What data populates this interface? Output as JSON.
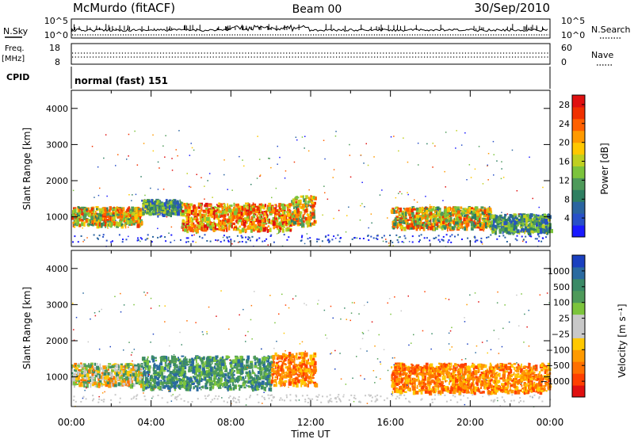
{
  "header": {
    "station": "McMurdo (fitACF)",
    "beam": "Beam 00",
    "date": "30/Sep/2010"
  },
  "noise_panel": {
    "left_label": "N.Sky",
    "left_ticks": [
      "10^5",
      "10^0"
    ],
    "right_ticks": [
      "10^5",
      "10^0"
    ],
    "right_label": "N.Search"
  },
  "freq_panel": {
    "left_label_1": "Freq.",
    "left_label_2": "[MHz]",
    "left_ticks": [
      "18",
      "8"
    ],
    "right_ticks": [
      "60",
      "0"
    ],
    "right_label": "Nave"
  },
  "cpid_panel": {
    "label": "CPID",
    "value": "normal (fast) 151"
  },
  "chart_data": [
    {
      "type": "heatmap",
      "panel": "power",
      "ylabel": "Slant Range [km]",
      "ylim": [
        180,
        4500
      ],
      "yticks": [
        "1000",
        "2000",
        "3000",
        "4000"
      ],
      "xlim_hours": [
        0,
        24
      ],
      "colorbar": {
        "label": "Power [dB]",
        "ticks": [
          "4",
          "8",
          "12",
          "16",
          "20",
          "24",
          "28"
        ],
        "colors": [
          "#1a1aff",
          "#2850c8",
          "#2a64a0",
          "#2e7f62",
          "#4e9a5a",
          "#7cc43c",
          "#bfd020",
          "#ffc800",
          "#ff9a00",
          "#ff6000",
          "#f03000",
          "#e01010"
        ]
      },
      "echo_regions": [
        {
          "t0": 0.0,
          "t1": 3.5,
          "r0": 800,
          "r1": 1300,
          "level": "high"
        },
        {
          "t0": 3.5,
          "t1": 5.5,
          "r0": 1100,
          "r1": 1500,
          "level": "medium"
        },
        {
          "t0": 5.5,
          "t1": 11.0,
          "r0": 650,
          "r1": 1400,
          "level": "very high"
        },
        {
          "t0": 11.0,
          "t1": 12.2,
          "r0": 800,
          "r1": 1600,
          "level": "high"
        },
        {
          "t0": 16.0,
          "t1": 21.0,
          "r0": 700,
          "r1": 1300,
          "level": "high"
        },
        {
          "t0": 21.0,
          "t1": 24.0,
          "r0": 600,
          "r1": 1100,
          "level": "medium"
        }
      ]
    },
    {
      "type": "heatmap",
      "panel": "velocity",
      "ylabel": "Slant Range [km]",
      "ylim": [
        180,
        4500
      ],
      "yticks": [
        "1000",
        "2000",
        "3000",
        "4000"
      ],
      "xlim_hours": [
        0,
        24
      ],
      "colorbar": {
        "label": "Velocity [m s⁻¹]",
        "ticks": [
          "1000",
          "500",
          "100",
          "25",
          "−25",
          "−100",
          "−500",
          "−1000"
        ],
        "colors": [
          "#1a40c0",
          "#2a6aa0",
          "#3a8a66",
          "#4e9a5a",
          "#7cc43c",
          "#c8c8c8",
          "#c8c8c8",
          "#ffc800",
          "#ff9a00",
          "#ff7000",
          "#ff4000",
          "#e01010"
        ]
      },
      "echo_regions": [
        {
          "t0": 0.0,
          "t1": 3.5,
          "r0": 800,
          "r1": 1400,
          "level": "mixed"
        },
        {
          "t0": 3.5,
          "t1": 10.0,
          "r0": 700,
          "r1": 1600,
          "level": "positive"
        },
        {
          "t0": 10.0,
          "t1": 12.2,
          "r0": 800,
          "r1": 1700,
          "level": "negative"
        },
        {
          "t0": 16.0,
          "t1": 24.0,
          "r0": 600,
          "r1": 1400,
          "level": "negative"
        }
      ]
    }
  ],
  "x_axis": {
    "ticks": [
      "00:00",
      "04:00",
      "08:00",
      "12:00",
      "16:00",
      "20:00",
      "00:00"
    ],
    "label": "Time UT"
  }
}
